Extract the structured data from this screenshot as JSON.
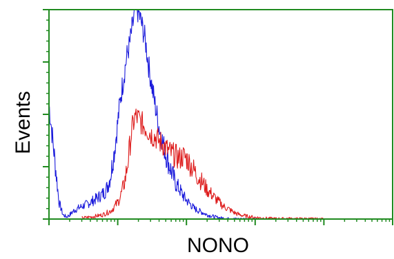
{
  "chart_data": {
    "type": "line",
    "xlabel": "NONO",
    "ylabel": "Events",
    "x_scale": "log",
    "xlim": [
      1,
      100000
    ],
    "ylim": [
      0,
      100
    ],
    "grid": false,
    "legend": "none",
    "frame_color": "#1f8a1f",
    "series": [
      {
        "color": "#1a1adb",
        "x": [
          1.0,
          1.2,
          1.4,
          1.6,
          1.8,
          2.0,
          2.3,
          2.6,
          3.0,
          3.5,
          4.0,
          4.5,
          5.0,
          5.5,
          6.0,
          6.5,
          7.0,
          7.5,
          8.0,
          8.5,
          9.0,
          9.5,
          10.0,
          11.0,
          12.0,
          13.0,
          14.0,
          15.0,
          16.0,
          17.0,
          18.0,
          20.0,
          22.0,
          25.0,
          28.0,
          32.0,
          36.0,
          40.0,
          45.0,
          50.0,
          56.0,
          63.0,
          70.0,
          80.0,
          90.0,
          100.0,
          115.0,
          130.0,
          150.0,
          175.0,
          200.0,
          230.0,
          260.0,
          300.0,
          350.0,
          400.0,
          500.0,
          700.0,
          1000.0
        ],
        "y": [
          55,
          30,
          8,
          2,
          1,
          2,
          4,
          5,
          6,
          7,
          8,
          9,
          10,
          11,
          12,
          13,
          15,
          18,
          22,
          28,
          33,
          40,
          46,
          58,
          66,
          74,
          80,
          84,
          90,
          95,
          100,
          99,
          94,
          86,
          74,
          62,
          52,
          44,
          37,
          31,
          26,
          21,
          17,
          14,
          11,
          9,
          7,
          5,
          4,
          3,
          2,
          1.5,
          1,
          0.6,
          0.4,
          0.2,
          0.1,
          0.05,
          0
        ]
      },
      {
        "color": "#dd1a1a",
        "x": [
          3.0,
          4.0,
          5.0,
          6.0,
          7.0,
          8.0,
          9.0,
          10.0,
          11.0,
          12.0,
          13.0,
          14.0,
          15.0,
          16.0,
          17.0,
          18.0,
          20.0,
          22.0,
          25.0,
          28.0,
          32.0,
          36.0,
          40.0,
          45.0,
          50.0,
          56.0,
          63.0,
          70.0,
          80.0,
          90.0,
          100.0,
          115.0,
          130.0,
          150.0,
          175.0,
          200.0,
          230.0,
          260.0,
          300.0,
          350.0,
          400.0,
          500.0,
          600.0,
          800.0,
          1000.0,
          1300.0,
          1600.0,
          2000.0,
          2500.0,
          3000.0,
          4000.0,
          5000.0,
          7000.0,
          10000.0
        ],
        "y": [
          0.5,
          1,
          1.5,
          2,
          3,
          4,
          6,
          8,
          11,
          15,
          20,
          27,
          35,
          42,
          46,
          49,
          48,
          46,
          44,
          42,
          40,
          39,
          37,
          36,
          34,
          32,
          31,
          30,
          29,
          30,
          29,
          26,
          23,
          20,
          17,
          14,
          12,
          10,
          8,
          6,
          5,
          3,
          2,
          1.2,
          0.8,
          0.5,
          0.3,
          0.2,
          0.2,
          0.3,
          0.1,
          0.2,
          0.1,
          0
        ]
      }
    ]
  }
}
